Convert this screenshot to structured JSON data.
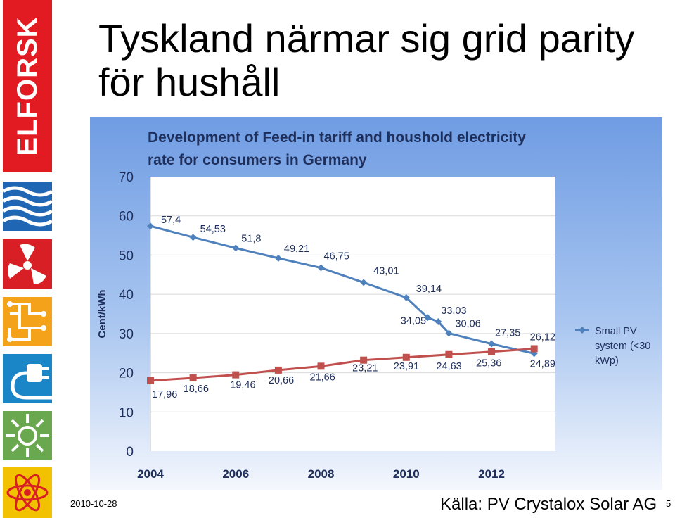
{
  "slide": {
    "title_line1": "Tyskland närmar sig grid parity",
    "title_line2": "för hushåll",
    "date": "2010-10-28",
    "source": "Källa: PV Crystalox Solar AG",
    "page_number": "5"
  },
  "sidebar": {
    "brand": "ELFORSK",
    "brand_color": "#e21b23",
    "icons": [
      "water-waves-icon",
      "fan-blades-icon",
      "circuit-grid-icon",
      "power-plug-icon",
      "sun-arrows-icon",
      "atom-icon"
    ]
  },
  "chart_data": {
    "type": "line",
    "title": "Development of Feed-in tariff and houshold electricity rate for consumers in Germany",
    "ylabel": "Cent/kWh",
    "xlabel": "",
    "ylim": [
      0,
      70
    ],
    "yticks": [
      "0",
      "10",
      "20",
      "30",
      "40",
      "50",
      "60",
      "70"
    ],
    "xlim": [
      2004,
      2013.5
    ],
    "xticks": [
      "2004",
      "2006",
      "2008",
      "2010",
      "2012"
    ],
    "legend_position": "right",
    "series": [
      {
        "name": "Small PV system (<30 kWp)",
        "color": "#4f81bd",
        "marker": "diamond",
        "x": [
          2004,
          2005,
          2006,
          2007,
          2008,
          2009,
          2010,
          2010.5,
          2010.75,
          2011,
          2012,
          2013
        ],
        "values": [
          57.4,
          54.53,
          51.8,
          49.21,
          46.75,
          43.01,
          39.14,
          34.05,
          33.03,
          30.06,
          27.35,
          24.89
        ],
        "labels": [
          "57,4",
          "54,53",
          "51,8",
          "49,21",
          "46,75",
          "43,01",
          "39,14",
          "34,05",
          "33,03",
          "30,06",
          "27,35",
          "24,89"
        ]
      },
      {
        "name": "",
        "color": "#c0504d",
        "marker": "square",
        "x": [
          2004,
          2005,
          2006,
          2007,
          2008,
          2009,
          2010,
          2011,
          2012,
          2013
        ],
        "values": [
          17.96,
          18.66,
          19.46,
          20.66,
          21.66,
          23.21,
          23.91,
          24.63,
          25.36,
          26.12
        ],
        "labels": [
          "17,96",
          "18,66",
          "19,46",
          "20,66",
          "21,66",
          "23,21",
          "23,91",
          "24,63",
          "25,36",
          "26,12"
        ]
      }
    ]
  }
}
